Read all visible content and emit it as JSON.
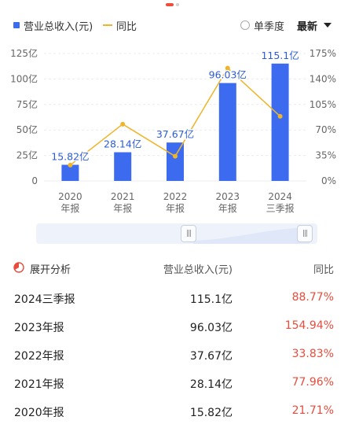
{
  "legend": {
    "bar_label": "营业总收入(元)",
    "line_label": "同比"
  },
  "controls": {
    "quarterly_label": "单季度",
    "sort_label": "最新"
  },
  "chart_data": {
    "type": "bar",
    "categories": [
      [
        "2020",
        "年报"
      ],
      [
        "2021",
        "年报"
      ],
      [
        "2022",
        "年报"
      ],
      [
        "2023",
        "年报"
      ],
      [
        "2024",
        "三季报"
      ]
    ],
    "series": [
      {
        "name": "营业总收入(元)",
        "type": "bar",
        "values": [
          15.82,
          28.14,
          37.67,
          96.03,
          115.1
        ],
        "labels": [
          "15.82亿",
          "28.14亿",
          "37.67亿",
          "96.03亿",
          "115.1亿"
        ],
        "color": "#3d6bf0",
        "axis": "left"
      },
      {
        "name": "同比",
        "type": "line",
        "values": [
          21.71,
          77.96,
          33.83,
          154.94,
          88.77
        ],
        "color": "#f0b429",
        "axis": "right"
      }
    ],
    "left_axis": {
      "ticks": [
        0,
        25,
        50,
        75,
        100,
        125
      ],
      "tick_labels": [
        "0",
        "25亿",
        "50亿",
        "75亿",
        "100亿",
        "125亿"
      ],
      "ylim": [
        0,
        125
      ]
    },
    "right_axis": {
      "ticks": [
        0,
        35,
        70,
        105,
        140,
        175
      ],
      "tick_labels": [
        "0%",
        "35%",
        "70%",
        "105%",
        "140%",
        "175%"
      ],
      "ylim": [
        0,
        175
      ]
    },
    "grid": true,
    "legend": "top-left"
  },
  "table": {
    "col1": "展开分析",
    "col2": "营业总收入(元)",
    "col3": "同比",
    "rows": [
      {
        "period": "2024三季报",
        "value": "115.1亿",
        "yoy": "88.77%"
      },
      {
        "period": "2023年报",
        "value": "96.03亿",
        "yoy": "154.94%"
      },
      {
        "period": "2022年报",
        "value": "37.67亿",
        "yoy": "33.83%"
      },
      {
        "period": "2021年报",
        "value": "28.14亿",
        "yoy": "77.96%"
      },
      {
        "period": "2020年报",
        "value": "15.82亿",
        "yoy": "21.71%"
      }
    ]
  }
}
